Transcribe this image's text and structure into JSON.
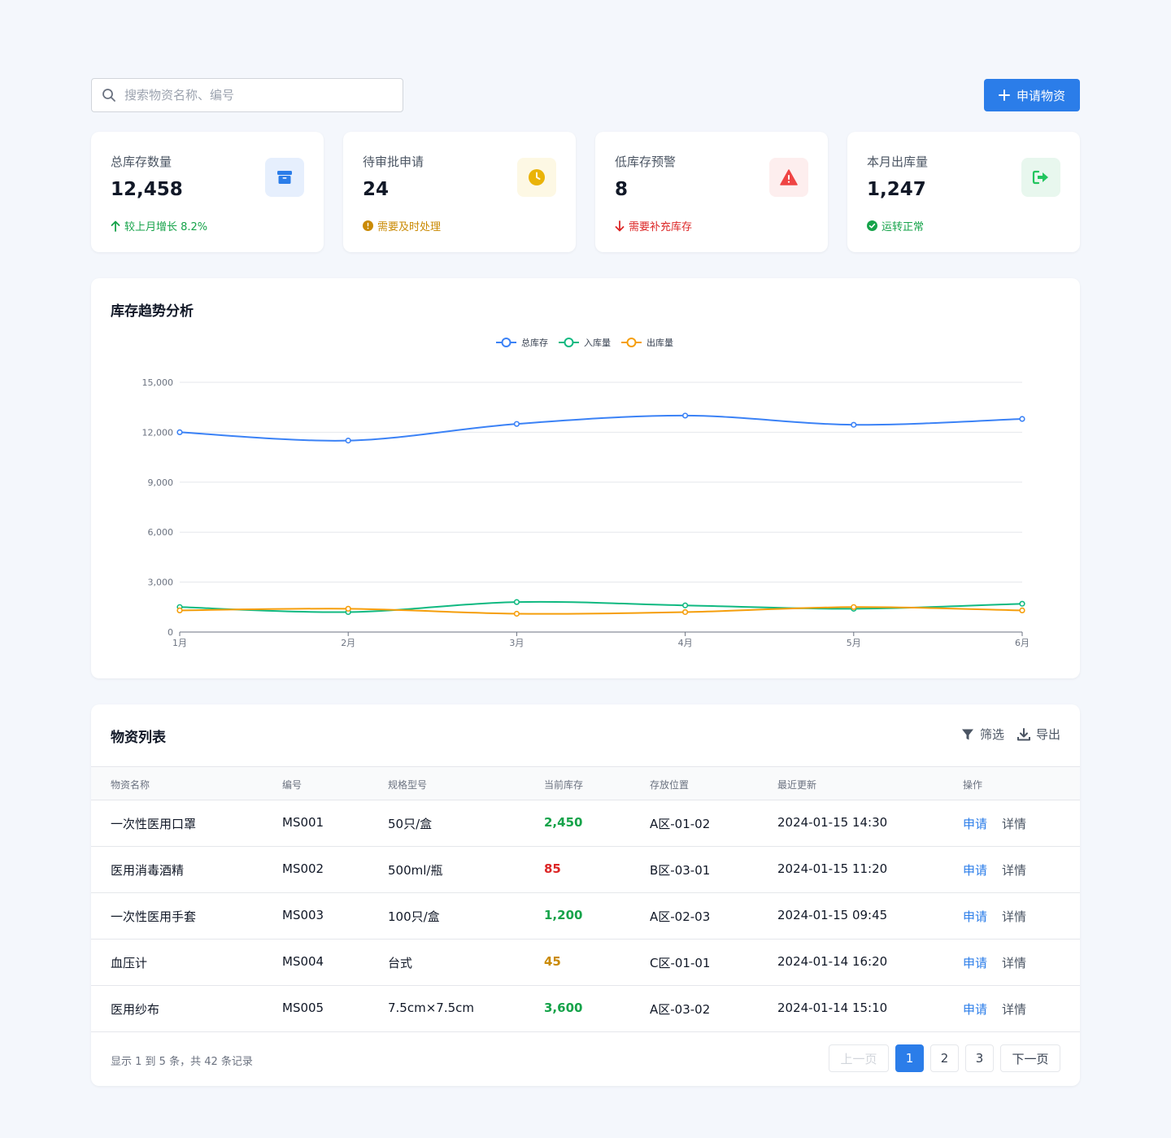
{
  "search": {
    "placeholder": "搜索物资名称、编号"
  },
  "header": {
    "apply_button": "申请物资"
  },
  "stats": [
    {
      "label": "总库存数量",
      "value": "12,458",
      "note": "较上月增长 8.2%",
      "note_color": "#16a34a",
      "icon": "box-icon",
      "icon_bg": "#e6effd",
      "icon_color": "#2b7de9"
    },
    {
      "label": "待审批申请",
      "value": "24",
      "note": "需要及时处理",
      "note_color": "#ca8a04",
      "icon": "clock-icon",
      "icon_bg": "#fdf8e4",
      "icon_color": "#eab308"
    },
    {
      "label": "低库存预警",
      "value": "8",
      "note": "需要补充库存",
      "note_color": "#dc2626",
      "icon": "warning-icon",
      "icon_bg": "#fdeeee",
      "icon_color": "#ef4444"
    },
    {
      "label": "本月出库量",
      "value": "1,247",
      "note": "运转正常",
      "note_color": "#16a34a",
      "icon": "exit-icon",
      "icon_bg": "#e8f7ee",
      "icon_color": "#22c55e"
    }
  ],
  "chart": {
    "title": "库存趋势分析"
  },
  "chart_data": {
    "type": "line",
    "categories": [
      "1月",
      "2月",
      "3月",
      "4月",
      "5月",
      "6月"
    ],
    "series": [
      {
        "name": "总库存",
        "color": "#3b82f6",
        "values": [
          12000,
          11500,
          12500,
          13000,
          12450,
          12800
        ]
      },
      {
        "name": "入库量",
        "color": "#10b981",
        "values": [
          1500,
          1200,
          1800,
          1600,
          1400,
          1700
        ]
      },
      {
        "name": "出库量",
        "color": "#f59e0b",
        "values": [
          1300,
          1400,
          1100,
          1200,
          1500,
          1300
        ]
      }
    ],
    "ylim": [
      0,
      15000
    ],
    "yticks": [
      "0",
      "3,000",
      "6,000",
      "9,000",
      "12,000",
      "15,000"
    ],
    "xlabel": "",
    "ylabel": "",
    "grid": true,
    "legend": "top-center"
  },
  "table": {
    "title": "物资列表",
    "filter_label": "筛选",
    "export_label": "导出",
    "columns": [
      "物资名称",
      "编号",
      "规格型号",
      "当前库存",
      "存放位置",
      "最近更新",
      "操作"
    ],
    "rows": [
      {
        "name": "一次性医用口罩",
        "code": "MS001",
        "spec": "50只/盒",
        "stock": "2,450",
        "stock_color": "#16a34a",
        "location": "A区-01-02",
        "updated": "2024-01-15 14:30"
      },
      {
        "name": "医用消毒酒精",
        "code": "MS002",
        "spec": "500ml/瓶",
        "stock": "85",
        "stock_color": "#dc2626",
        "location": "B区-03-01",
        "updated": "2024-01-15 11:20"
      },
      {
        "name": "一次性医用手套",
        "code": "MS003",
        "spec": "100只/盒",
        "stock": "1,200",
        "stock_color": "#16a34a",
        "location": "A区-02-03",
        "updated": "2024-01-15 09:45"
      },
      {
        "name": "血压计",
        "code": "MS004",
        "spec": "台式",
        "stock": "45",
        "stock_color": "#ca8a04",
        "location": "C区-01-01",
        "updated": "2024-01-14 16:20"
      },
      {
        "name": "医用纱布",
        "code": "MS005",
        "spec": "7.5cm×7.5cm",
        "stock": "3,600",
        "stock_color": "#16a34a",
        "location": "A区-03-02",
        "updated": "2024-01-14 15:10"
      }
    ],
    "row_actions": {
      "apply": "申请",
      "detail": "详情"
    },
    "footer": "显示 1 到 5 条，共 42 条记录",
    "pagination": {
      "prev": "上一页",
      "pages": [
        "1",
        "2",
        "3"
      ],
      "current": "1",
      "next": "下一页"
    }
  }
}
